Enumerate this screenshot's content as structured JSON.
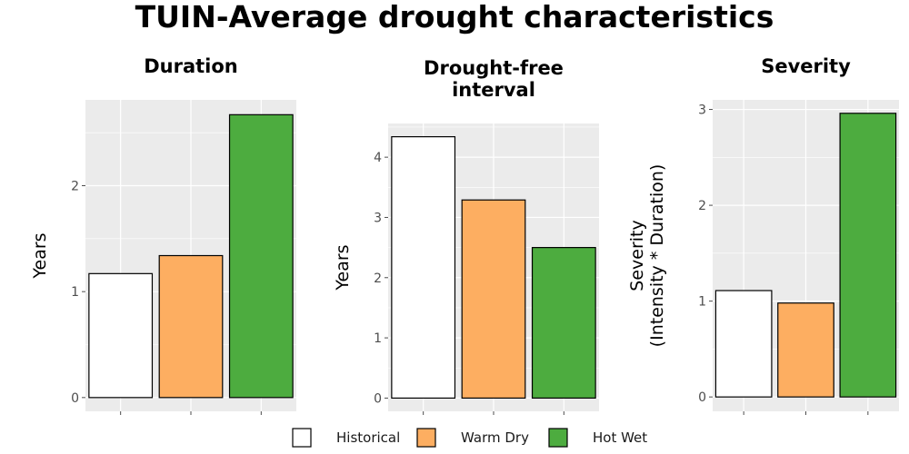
{
  "title": "TUIN-Average drought characteristics",
  "colors": {
    "panel_background": "#EBEBEB",
    "gridline": "#FFFFFF",
    "bar_outline": "#000000",
    "tick_color": "#4D4D4D"
  },
  "legend": {
    "position": "bottom",
    "items": [
      {
        "label": "Historical",
        "color": "#FFFFFF"
      },
      {
        "label": "Warm Dry",
        "color": "#FDAE61"
      },
      {
        "label": "Hot Wet",
        "color": "#4DAC3F"
      }
    ]
  },
  "chart_data": [
    {
      "type": "bar",
      "title": "Duration",
      "title_lines": [
        "Duration"
      ],
      "xlabel": "",
      "ylabel": "Years",
      "ylabel_lines": [
        "Years"
      ],
      "categories": [
        "Historical",
        "Warm Dry",
        "Hot Wet"
      ],
      "values": [
        1.17,
        1.34,
        2.67
      ],
      "colors": [
        "#FFFFFF",
        "#FDAE61",
        "#4DAC3F"
      ],
      "yticks": [
        0,
        1,
        2
      ],
      "ylim": [
        -0.13,
        2.81
      ],
      "grid": true,
      "grid_minor": true
    },
    {
      "type": "bar",
      "title": "Drought-free interval",
      "title_lines": [
        "Drought-free",
        "interval"
      ],
      "xlabel": "",
      "ylabel": "Years",
      "ylabel_lines": [
        "Years"
      ],
      "categories": [
        "Historical",
        "Warm Dry",
        "Hot Wet"
      ],
      "values": [
        4.34,
        3.29,
        2.5
      ],
      "colors": [
        "#FFFFFF",
        "#FDAE61",
        "#4DAC3F"
      ],
      "yticks": [
        0,
        1,
        2,
        3,
        4
      ],
      "ylim": [
        -0.22,
        4.56
      ],
      "grid": true,
      "grid_minor": true
    },
    {
      "type": "bar",
      "title": "Severity",
      "title_lines": [
        "Severity"
      ],
      "xlabel": "",
      "ylabel": "Severity (Intensity * Duration)",
      "ylabel_lines": [
        "Severity",
        "(Intensity * Duration)"
      ],
      "categories": [
        "Historical",
        "Warm Dry",
        "Hot Wet"
      ],
      "values": [
        1.11,
        0.98,
        2.96
      ],
      "colors": [
        "#FFFFFF",
        "#FDAE61",
        "#4DAC3F"
      ],
      "yticks": [
        0,
        1,
        2,
        3
      ],
      "ylim": [
        -0.15,
        3.1
      ],
      "grid": true,
      "grid_minor": true
    }
  ]
}
